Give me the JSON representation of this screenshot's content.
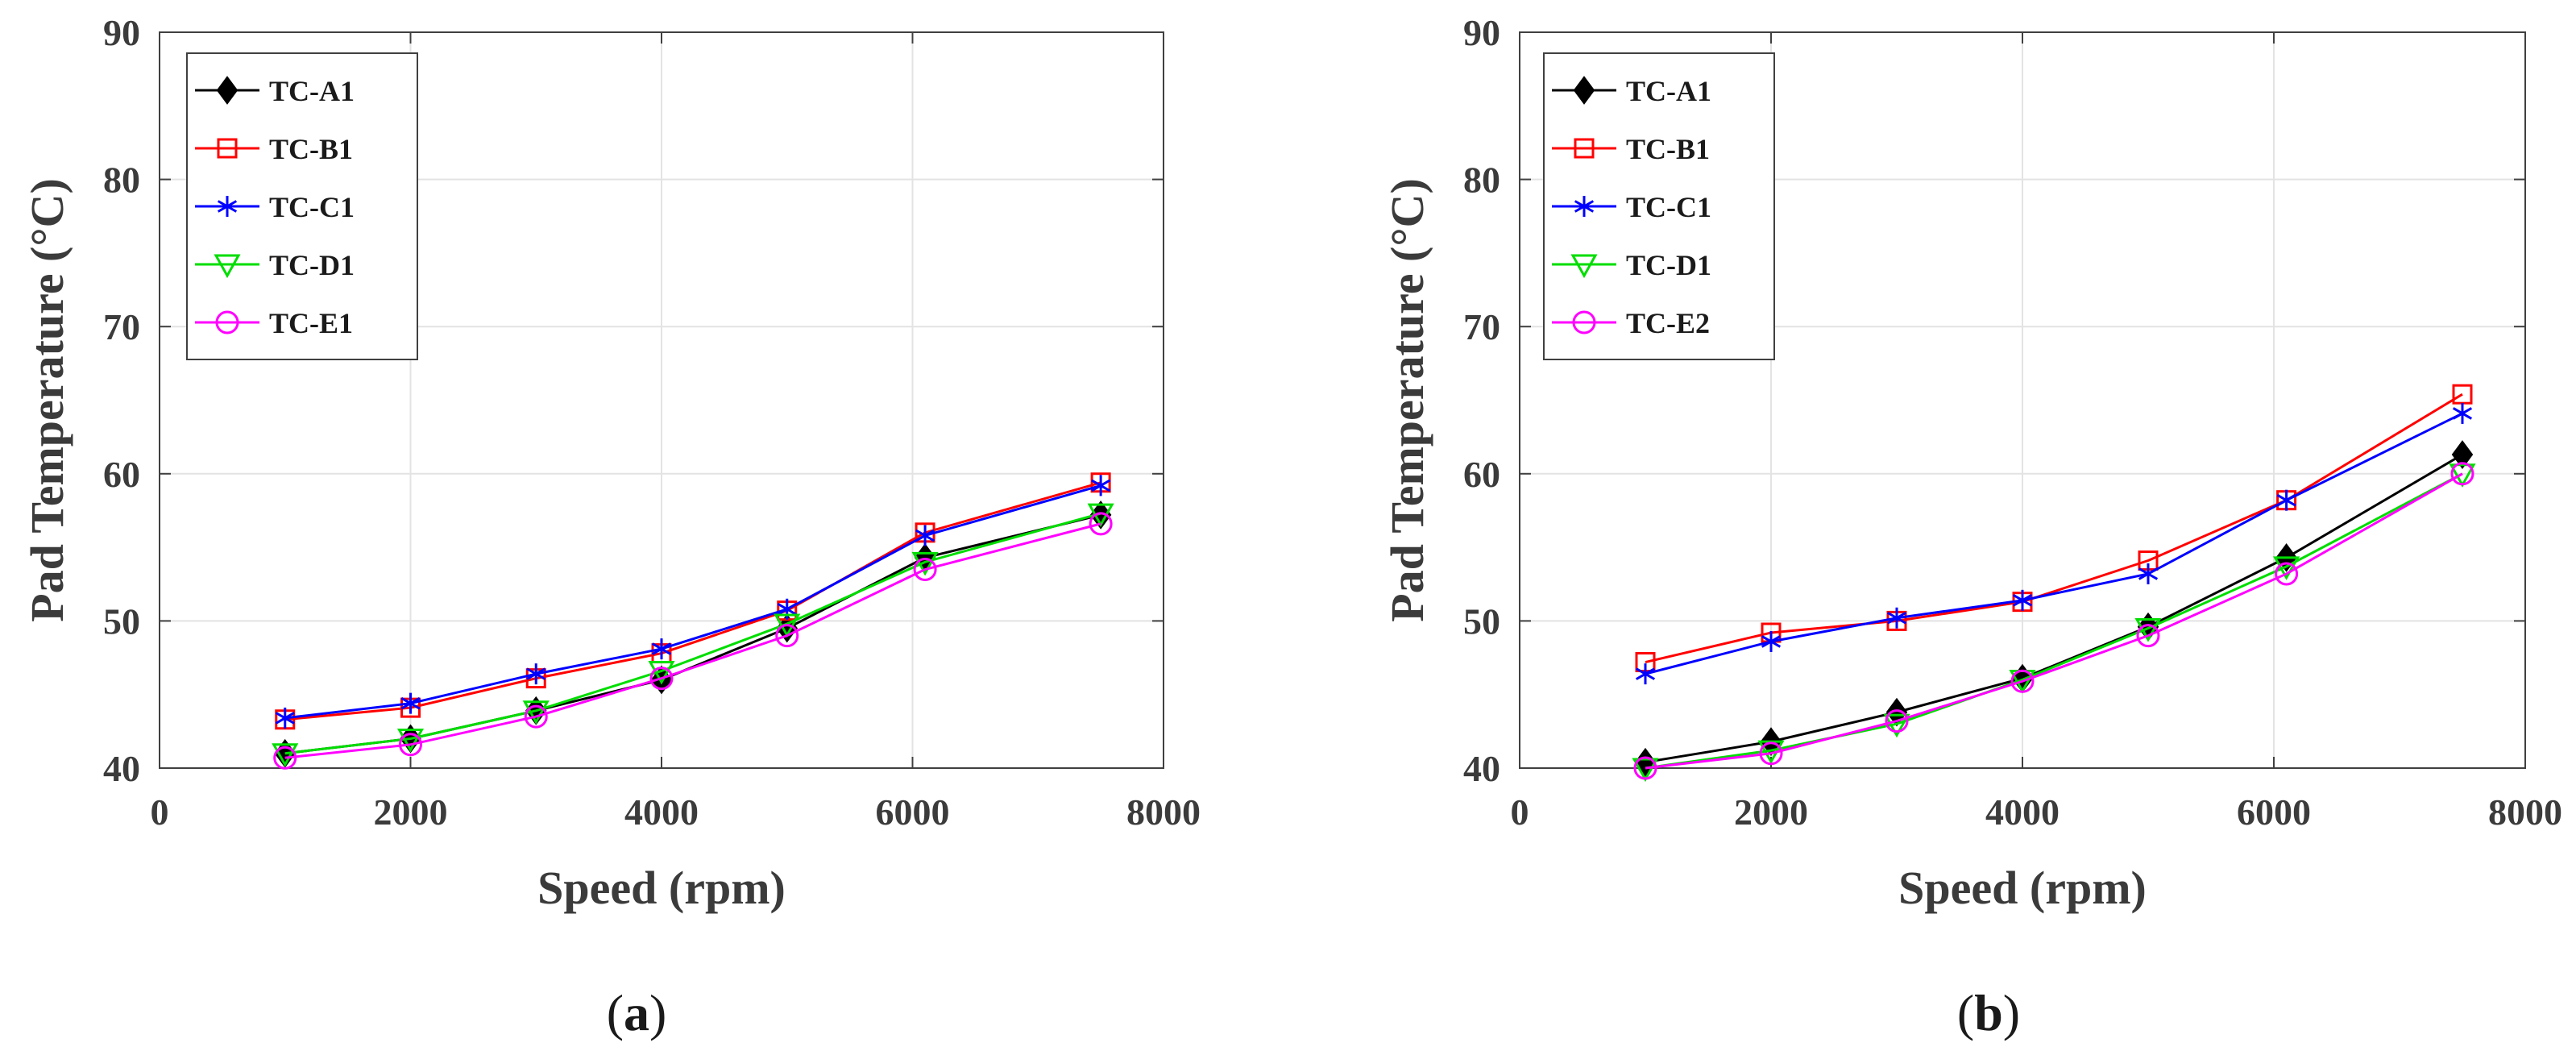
{
  "figure": {
    "panel_labels": [
      "(a)",
      "(b)"
    ]
  },
  "chart_data": [
    {
      "type": "line",
      "panel_label": "(a)",
      "xlabel": "Speed (rpm)",
      "ylabel": "Pad Temperature (°C)",
      "xlim": [
        0,
        8000
      ],
      "ylim": [
        40,
        90
      ],
      "xticks": [
        0,
        2000,
        4000,
        6000,
        8000
      ],
      "yticks": [
        40,
        50,
        60,
        70,
        80,
        90
      ],
      "grid": true,
      "legend_position": "top-left",
      "x": [
        1000,
        2000,
        3000,
        4000,
        5000,
        6100,
        7500
      ],
      "series": [
        {
          "name": "TC-A1",
          "color": "#000000",
          "marker": "diamond-filled",
          "values": [
            41.0,
            42.0,
            43.9,
            46.0,
            49.5,
            54.3,
            57.2
          ]
        },
        {
          "name": "TC-B1",
          "color": "#ff0000",
          "marker": "square-open",
          "values": [
            43.3,
            44.1,
            46.1,
            47.8,
            50.7,
            56.0,
            59.4
          ]
        },
        {
          "name": "TC-C1",
          "color": "#0000ff",
          "marker": "asterisk",
          "values": [
            43.4,
            44.4,
            46.4,
            48.1,
            50.8,
            55.8,
            59.2
          ]
        },
        {
          "name": "TC-D1",
          "color": "#00dd00",
          "marker": "triangle-down-open",
          "values": [
            41.0,
            42.0,
            43.9,
            46.6,
            49.8,
            54.0,
            57.3
          ]
        },
        {
          "name": "TC-E1",
          "color": "#ff00ff",
          "marker": "circle-open",
          "values": [
            40.7,
            41.6,
            43.5,
            46.1,
            49.0,
            53.5,
            56.6
          ]
        }
      ]
    },
    {
      "type": "line",
      "panel_label": "(b)",
      "xlabel": "Speed (rpm)",
      "ylabel": "Pad Temperature (°C)",
      "xlim": [
        0,
        8000
      ],
      "ylim": [
        40,
        90
      ],
      "xticks": [
        0,
        2000,
        4000,
        6000,
        8000
      ],
      "yticks": [
        40,
        50,
        60,
        70,
        80,
        90
      ],
      "grid": true,
      "legend_position": "top-left",
      "x": [
        1000,
        2000,
        3000,
        4000,
        5000,
        6100,
        7500
      ],
      "series": [
        {
          "name": "TC-A1",
          "color": "#000000",
          "marker": "diamond-filled",
          "values": [
            40.4,
            41.8,
            43.8,
            46.1,
            49.6,
            54.3,
            61.3
          ]
        },
        {
          "name": "TC-B1",
          "color": "#ff0000",
          "marker": "square-open",
          "values": [
            47.2,
            49.2,
            50.0,
            51.3,
            54.1,
            58.2,
            65.4
          ]
        },
        {
          "name": "TC-C1",
          "color": "#0000ff",
          "marker": "asterisk",
          "values": [
            46.4,
            48.6,
            50.2,
            51.4,
            53.2,
            58.2,
            64.1
          ]
        },
        {
          "name": "TC-D1",
          "color": "#00dd00",
          "marker": "triangle-down-open",
          "values": [
            40.0,
            41.2,
            43.0,
            46.0,
            49.5,
            53.7,
            60.0
          ]
        },
        {
          "name": "TC-E2",
          "color": "#ff00ff",
          "marker": "circle-open",
          "values": [
            40.0,
            41.0,
            43.2,
            45.9,
            49.0,
            53.2,
            60.0
          ]
        }
      ]
    }
  ]
}
